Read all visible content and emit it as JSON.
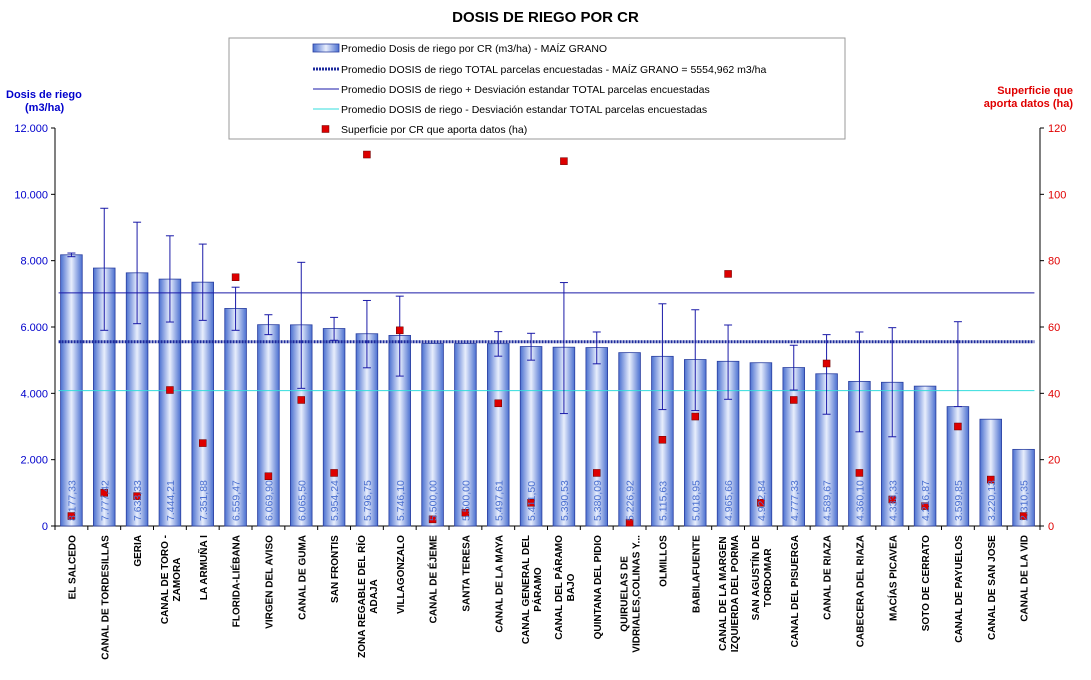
{
  "chart_data": {
    "type": "bar",
    "title": "DOSIS DE RIEGO POR CR",
    "ylabel_left": [
      "Dosis de riego",
      "(m3/ha)"
    ],
    "ylabel_right": [
      "Superficie que",
      "aporta datos (ha)"
    ],
    "y_left": {
      "min": 0,
      "max": 12000,
      "ticks": [
        "0",
        "2.000",
        "4.000",
        "6.000",
        "8.000",
        "10.000",
        "12.000"
      ]
    },
    "y_right": {
      "min": 0,
      "max": 120,
      "ticks": [
        "0",
        "20",
        "40",
        "60",
        "80",
        "100",
        "120"
      ]
    },
    "grid": false,
    "legend_position": "top",
    "legend": [
      "Promedio Dosis de riego por CR (m3/ha) - MAÍZ GRANO",
      "Promedio DOSIS de riego TOTAL parcelas encuestadas - MAÍZ GRANO = 5554,962 m3/ha",
      "Promedio DOSIS de riego + Desviación estandar TOTAL parcelas encuestadas",
      "Promedio DOSIS de riego - Desviación estandar TOTAL parcelas encuestadas",
      "Superficie por CR que aporta datos (ha)"
    ],
    "categories": [
      [
        "EL SALCEDO"
      ],
      [
        "CANAL DE TORDESILLAS"
      ],
      [
        "GERIA"
      ],
      [
        "CANAL DE TORO -",
        "ZAMORA"
      ],
      [
        "LA ARMUÑA I"
      ],
      [
        "FLORIDA-LIÉBANA"
      ],
      [
        "VIRGEN DEL AVISO"
      ],
      [
        "CANAL DE GUMA"
      ],
      [
        "SAN FRONTIS"
      ],
      [
        "ZONA REGABLE DEL RÍO",
        "ADAJA"
      ],
      [
        "VILLAGONZALO"
      ],
      [
        "CANAL DE ÉJEME"
      ],
      [
        "SANTA TERESA"
      ],
      [
        "CANAL DE LA MAYA"
      ],
      [
        "CANAL GENERAL DEL",
        "PÁRAMO"
      ],
      [
        "CANAL DEL PÁRAMO",
        "BAJO"
      ],
      [
        "QUINTANA DEL PIDIO"
      ],
      [
        "QUIRUELAS DE",
        "VIDRIALES,COLINAS Y..."
      ],
      [
        "OLMILLOS"
      ],
      [
        "BABILAFUENTE"
      ],
      [
        "CANAL DE LA MARGEN",
        "IZQUIERDA DEL PORMA"
      ],
      [
        "SAN AGUSTÍN DE",
        "TORDOMAR"
      ],
      [
        "CANAL DEL PISUERGA"
      ],
      [
        "CANAL DE RIAZA"
      ],
      [
        "CABECERA DEL RIAZA"
      ],
      [
        "MACÍAS PICAVEA"
      ],
      [
        "SOTO DE CERRATO"
      ],
      [
        "CANAL DE PAYUELOS"
      ],
      [
        "CANAL DE SAN JOSE"
      ],
      [
        "CANAL DE LA VID"
      ]
    ],
    "values": [
      8177.33,
      7777.42,
      7633.33,
      7444.21,
      7351.88,
      6559.47,
      6069.9,
      6065.5,
      5954.24,
      5796.75,
      5746.1,
      5500.0,
      5500.0,
      5497.61,
      5411.5,
      5390.53,
      5380.09,
      5226.92,
      5115.63,
      5018.95,
      4965.66,
      4922.84,
      4777.33,
      4589.67,
      4360.1,
      4333.33,
      4216.87,
      3599.85,
      3220.13,
      2310.35
    ],
    "value_labels": [
      "8.177,33",
      "7.777,42",
      "7.633,33",
      "7.444,21",
      "7.351,88",
      "6.559,47",
      "6.069,90",
      "6.065,50",
      "5.954,24",
      "5.796,75",
      "5.746,10",
      "5.500,00",
      "5.500,00",
      "5.497,61",
      "5.411,50",
      "5.390,53",
      "5.380,09",
      "5.226,92",
      "5.115,63",
      "5.018,95",
      "4.965,66",
      "4.922,84",
      "4.777,33",
      "4.589,67",
      "4.360,10",
      "4.333,33",
      "4.216,87",
      "3.599,85",
      "3.220,13",
      "2.310,35"
    ],
    "error_high": [
      8230,
      9580,
      9160,
      8750,
      8500,
      7200,
      6370,
      7950,
      6290,
      6800,
      6930,
      5500,
      5500,
      5860,
      5810,
      7340,
      5850,
      5226.92,
      6700,
      6520,
      6060,
      4922.84,
      5450,
      5770,
      5850,
      5980,
      4216.87,
      6160,
      3220.13,
      2310.35
    ],
    "error_low": [
      8120,
      5900,
      6100,
      6150,
      6200,
      5900,
      5770,
      4150,
      5600,
      4770,
      4520,
      5500,
      5500,
      5120,
      5000,
      3390,
      4890,
      5226.92,
      3510,
      3480,
      3820,
      4922.84,
      4100,
      3370,
      2840,
      2690,
      4216.87,
      3599.85,
      3220.13,
      2310.35
    ],
    "surface_ha": [
      3,
      10,
      9,
      41,
      25,
      75,
      15,
      38,
      16,
      112,
      59,
      2,
      4,
      37,
      7,
      110,
      16,
      1,
      26,
      33,
      76,
      7,
      38,
      49,
      16,
      8,
      6,
      30,
      14,
      3
    ],
    "mean_total": 5554.962,
    "mean_plus_sd": 7030,
    "mean_minus_sd": 4080,
    "colors": {
      "bar_fill_center": "#e8eefc",
      "bar_fill_edge": "#4a6fd0",
      "bar_stroke": "#2a3fa0",
      "mean_line": "#1c2a9c",
      "plus_sd_line": "#1a1aa8",
      "minus_sd_line": "#33dddd",
      "errorbar": "#1a1aa8",
      "surface_marker": "#dd0000",
      "left_axis_text": "#0000cc",
      "right_axis_text": "#e00000",
      "value_label_text": "#4a6fd0"
    }
  }
}
